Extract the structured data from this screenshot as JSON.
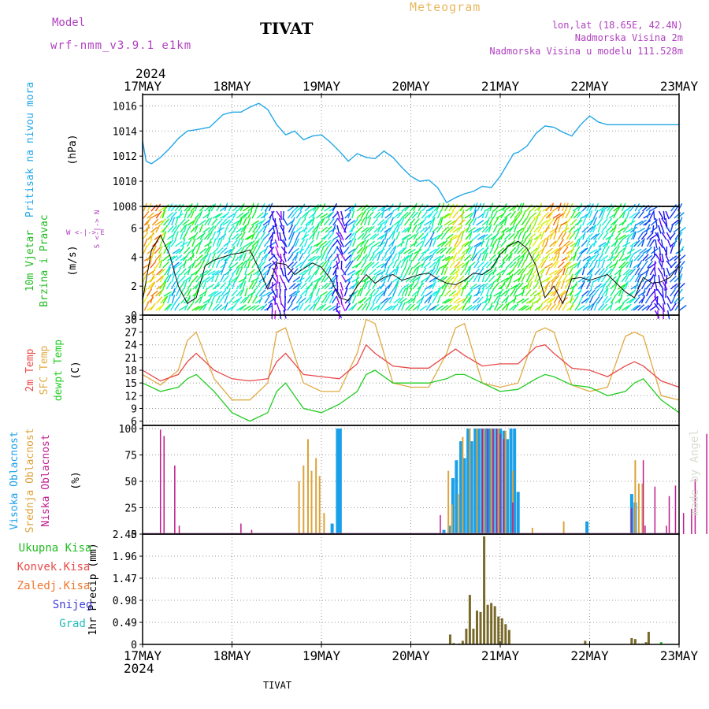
{
  "header": {
    "model_label": "Model",
    "model_name": "wrf-nmm_v3.9.1 e1km",
    "station": "TIVAT",
    "product": "Meteogram",
    "lonlat": "lon,lat (18.65E, 42.4N)",
    "altitude": "Nadmorska Visina 2m",
    "model_altitude": "Nadmorska Visina u modelu 111.528m",
    "footer_station": "TIVAT",
    "watermark": "made by Angel"
  },
  "colors": {
    "pressure": "#22a7e6",
    "temp2m": "#e84a4a",
    "sfc_temp": "#e0aa44",
    "dewpoint": "#22cc22",
    "high_cloud": "#1aa0e8",
    "mid_cloud": "#dca33a",
    "low_cloud": "#c01a8c",
    "precip_total": "#22bb22",
    "precip_conv": "#e84a4a",
    "precip_frz": "#f07830",
    "precip_snow": "#4040dd",
    "precip_hail": "#22bbbb",
    "precip_bar": "#7a6a2a",
    "wind_label": "#22bb22",
    "header_purple": "#b040c0",
    "header_orange": "#e8b860"
  },
  "time_axis": {
    "year_top": "2024",
    "year_bottom": "2024",
    "ticks": [
      "17MAY",
      "18MAY",
      "19MAY",
      "20MAY",
      "21MAY",
      "22MAY",
      "23MAY"
    ]
  },
  "chart_data": [
    {
      "type": "line",
      "panel": "pressure",
      "ylabel_title": "Pritisak na nivou mora",
      "ylabel_unit": "(hPa)",
      "ylim": [
        1008,
        1016.9
      ],
      "yticks": [
        "1008",
        "1010",
        "1012",
        "1014",
        "1016"
      ],
      "grid": true,
      "x_days": [
        0,
        0.04,
        0.1,
        0.2,
        0.3,
        0.4,
        0.5,
        0.6,
        0.75,
        0.9,
        1.0,
        1.1,
        1.2,
        1.3,
        1.4,
        1.5,
        1.6,
        1.7,
        1.8,
        1.9,
        2.0,
        2.1,
        2.2,
        2.3,
        2.4,
        2.5,
        2.6,
        2.7,
        2.8,
        2.9,
        3.0,
        3.1,
        3.2,
        3.3,
        3.4,
        3.5,
        3.6,
        3.7,
        3.8,
        3.9,
        4.0,
        4.1,
        4.15,
        4.2,
        4.3,
        4.4,
        4.5,
        4.6,
        4.7,
        4.8,
        4.9,
        5.0,
        5.1,
        5.2,
        5.3,
        5.4,
        5.5,
        5.6,
        5.7,
        5.8,
        5.9,
        6.0
      ],
      "series": [
        {
          "values": [
            1013.2,
            1011.6,
            1011.4,
            1011.9,
            1012.6,
            1013.4,
            1014.0,
            1014.1,
            1014.3,
            1015.3,
            1015.5,
            1015.5,
            1015.9,
            1016.2,
            1015.7,
            1014.5,
            1013.7,
            1014.0,
            1013.3,
            1013.6,
            1013.7,
            1013.1,
            1012.4,
            1011.6,
            1012.2,
            1011.9,
            1011.8,
            1012.4,
            1011.9,
            1011.1,
            1010.4,
            1010.0,
            1010.1,
            1009.5,
            1008.3,
            1008.7,
            1009.0,
            1009.2,
            1009.6,
            1009.5,
            1010.4,
            1011.6,
            1012.2,
            1012.3,
            1012.8,
            1013.8,
            1014.4,
            1014.3,
            1013.9,
            1013.6,
            1014.5,
            1015.2,
            1014.7,
            1014.5,
            1014.5,
            1014.5,
            1014.5,
            1014.5,
            1014.5,
            1014.5,
            1014.5,
            1014.5
          ]
        }
      ]
    },
    {
      "type": "line",
      "panel": "wind",
      "ylabel_title_1": "10m Vjetar",
      "ylabel_title_2": "Brzina i Pravac",
      "ylabel_unit": "(m/s)",
      "compass": "W <-|-> E",
      "compass_v": "S <-|-> N",
      "ylim": [
        0,
        7.5
      ],
      "yticks": [
        "0",
        "2",
        "4",
        "6"
      ],
      "grid": true,
      "x_days": [
        0,
        0.1,
        0.2,
        0.3,
        0.4,
        0.5,
        0.6,
        0.7,
        0.8,
        0.9,
        1.0,
        1.1,
        1.2,
        1.3,
        1.4,
        1.5,
        1.6,
        1.7,
        1.8,
        1.9,
        2.0,
        2.1,
        2.2,
        2.3,
        2.4,
        2.5,
        2.6,
        2.7,
        2.8,
        2.9,
        3.0,
        3.1,
        3.2,
        3.3,
        3.4,
        3.5,
        3.6,
        3.7,
        3.8,
        3.9,
        4.0,
        4.1,
        4.2,
        4.3,
        4.4,
        4.5,
        4.6,
        4.7,
        4.8,
        4.9,
        5.0,
        5.1,
        5.2,
        5.3,
        5.4,
        5.5,
        5.6,
        5.7,
        5.8,
        5.9,
        6.0
      ],
      "series": [
        {
          "values": [
            1.0,
            4.5,
            5.5,
            4.2,
            2.0,
            0.8,
            1.2,
            3.4,
            3.8,
            4.0,
            4.2,
            4.3,
            4.5,
            3.2,
            1.8,
            3.6,
            3.5,
            2.8,
            3.2,
            3.6,
            3.3,
            2.5,
            1.2,
            1.0,
            2.0,
            2.8,
            2.2,
            2.6,
            2.8,
            2.4,
            2.6,
            2.8,
            2.9,
            2.5,
            2.2,
            2.1,
            2.4,
            2.9,
            2.8,
            3.2,
            4.2,
            4.8,
            5.1,
            4.6,
            3.4,
            1.2,
            2.0,
            0.8,
            2.5,
            2.6,
            2.4,
            2.6,
            2.8,
            2.2,
            1.6,
            1.2,
            2.6,
            2.2,
            2.3,
            2.6,
            3.4
          ]
        }
      ]
    },
    {
      "type": "line",
      "panel": "temperature",
      "ylabel_title_1": "2m Temp",
      "ylabel_title_2": "SFC Temp",
      "ylabel_title_3": "dewpt Temp",
      "ylabel_unit": "(C)",
      "ylim": [
        5,
        31
      ],
      "yticks": [
        "6",
        "9",
        "12",
        "15",
        "18",
        "21",
        "24",
        "27",
        "30"
      ],
      "grid": true,
      "x_days": [
        0,
        0.2,
        0.4,
        0.5,
        0.6,
        0.8,
        1.0,
        1.2,
        1.4,
        1.5,
        1.6,
        1.8,
        2.0,
        2.2,
        2.4,
        2.5,
        2.6,
        2.8,
        3.0,
        3.2,
        3.4,
        3.5,
        3.6,
        3.8,
        4.0,
        4.2,
        4.4,
        4.5,
        4.6,
        4.8,
        5.0,
        5.2,
        5.4,
        5.5,
        5.6,
        5.8,
        6.0
      ],
      "series": [
        {
          "name": "2m Temp",
          "values": [
            18,
            15.5,
            17,
            20,
            22,
            18,
            16,
            15.5,
            16,
            20,
            22,
            17,
            16.5,
            16,
            19.5,
            24,
            22,
            19,
            18.5,
            18.5,
            21.5,
            23,
            21.5,
            19,
            19.5,
            19.5,
            23.5,
            24,
            22,
            18.5,
            18,
            16.5,
            19,
            20,
            19,
            15.5,
            14
          ]
        },
        {
          "name": "SFC Temp",
          "values": [
            17,
            14.5,
            18,
            25,
            27,
            16,
            11,
            11,
            15,
            27,
            28,
            15,
            13,
            13,
            22,
            30,
            29,
            15,
            14,
            14,
            22,
            28,
            29,
            15,
            14,
            15,
            27,
            28,
            27,
            14.5,
            13,
            14,
            26,
            27,
            26,
            12,
            11
          ]
        },
        {
          "name": "dewpt Temp",
          "values": [
            15,
            13,
            14,
            16,
            17,
            13,
            8,
            6,
            8,
            13,
            15,
            9,
            8,
            10,
            13,
            17,
            18,
            15,
            15,
            15,
            16,
            17,
            17,
            15,
            13,
            13.5,
            16,
            17,
            16.5,
            14.5,
            14,
            12,
            13,
            15,
            16,
            11,
            8
          ]
        }
      ]
    },
    {
      "type": "bar",
      "panel": "clouds",
      "ylabel_title_1": "Visoka Oblacnost",
      "ylabel_title_2": "Srednja Oblacnost",
      "ylabel_title_3": "Niska Oblacnost",
      "ylabel_unit": "(%)",
      "ylim": [
        0,
        103
      ],
      "yticks": [
        "0",
        "25",
        "50",
        "75",
        "100"
      ],
      "grid": true,
      "series": [
        {
          "name": "Visoka Oblacnost",
          "x_days": [
            2.12,
            2.18,
            2.21,
            3.37,
            3.43,
            3.47,
            3.51,
            3.56,
            3.6,
            3.64,
            3.68,
            3.72,
            3.76,
            3.8,
            3.84,
            3.88,
            3.92,
            3.96,
            4.0,
            4.04,
            4.08,
            4.12,
            4.16,
            4.2,
            4.97,
            5.47,
            5.51
          ],
          "values": [
            10,
            100,
            100,
            4,
            8,
            53,
            70,
            88,
            72,
            100,
            88,
            100,
            100,
            100,
            100,
            100,
            100,
            100,
            100,
            98,
            90,
            100,
            100,
            40,
            12,
            38,
            30
          ]
        },
        {
          "name": "Srednja Oblacnost",
          "x_days": [
            1.75,
            1.8,
            1.85,
            1.89,
            1.94,
            1.98,
            2.03,
            3.42,
            3.46,
            3.53,
            3.58,
            3.66,
            3.74,
            3.82,
            3.9,
            3.98,
            4.06,
            4.14,
            4.36,
            4.71,
            5.51,
            5.55,
            5.59
          ],
          "values": [
            50,
            65,
            90,
            60,
            72,
            55,
            20,
            60,
            28,
            38,
            92,
            100,
            100,
            100,
            100,
            100,
            98,
            60,
            6,
            12,
            70,
            48,
            48
          ]
        },
        {
          "name": "Niska Oblacnost",
          "x_days": [
            0.2,
            0.24,
            0.36,
            0.41,
            1.1,
            1.22,
            3.33,
            3.8,
            3.86,
            3.92,
            3.96,
            4.0,
            4.04,
            4.14,
            5.47,
            5.6,
            5.73,
            5.86,
            5.89,
            5.96,
            6.05,
            6.14,
            6.18,
            6.31,
            6.36,
            5.62
          ],
          "values": [
            99,
            93,
            65,
            8,
            10,
            4,
            18,
            100,
            100,
            100,
            100,
            95,
            90,
            30,
            25,
            70,
            45,
            8,
            36,
            46,
            20,
            24,
            52,
            95,
            8,
            8
          ]
        }
      ]
    },
    {
      "type": "bar",
      "panel": "precipitation",
      "ylabel_unit": "1hr Precip (mm)",
      "legend": [
        "Ukupna Kisa",
        "Konvek.Kisa",
        "Zaledj.Kisa",
        "Snijeg",
        "Grad"
      ],
      "ylim": [
        0,
        2.45
      ],
      "yticks": [
        "0",
        "0.49",
        "0.98",
        "1.47",
        "1.96",
        "2.45"
      ],
      "grid": true,
      "x_days": [
        3.44,
        3.48,
        3.54,
        3.58,
        3.62,
        3.66,
        3.7,
        3.74,
        3.78,
        3.82,
        3.86,
        3.9,
        3.94,
        3.98,
        4.02,
        4.06,
        4.1,
        4.95,
        5.47,
        5.51,
        5.55,
        5.59,
        5.63,
        5.66,
        5.8
      ],
      "values": [
        0.22,
        0.03,
        0.02,
        0.08,
        0.35,
        1.1,
        0.35,
        0.75,
        0.72,
        2.4,
        0.88,
        0.92,
        0.85,
        0.62,
        0.58,
        0.45,
        0.32,
        0.08,
        0.14,
        0.12,
        0.02,
        0.02,
        0.05,
        0.28,
        0.05
      ]
    }
  ]
}
